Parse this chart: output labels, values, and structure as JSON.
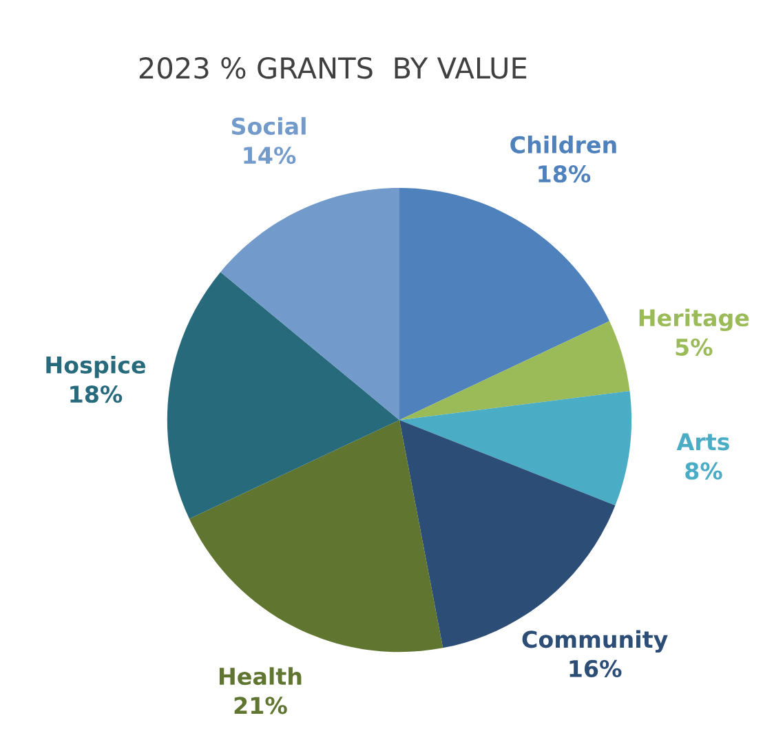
{
  "chart_data": {
    "type": "pie",
    "title": "2023 % GRANTS  BY VALUE",
    "categories": [
      "Children",
      "Heritage",
      "Arts",
      "Community",
      "Health",
      "Hospice",
      "Social"
    ],
    "values": [
      18,
      5,
      8,
      16,
      21,
      18,
      14
    ],
    "colors": [
      "#4f81bd",
      "#9bbb59",
      "#4bacc6",
      "#2c4d75",
      "#5f7530",
      "#276a7c",
      "#729aca"
    ],
    "value_labels": [
      "18%",
      "5%",
      "8%",
      "16%",
      "21%",
      "18%",
      "14%"
    ],
    "legend": false
  }
}
